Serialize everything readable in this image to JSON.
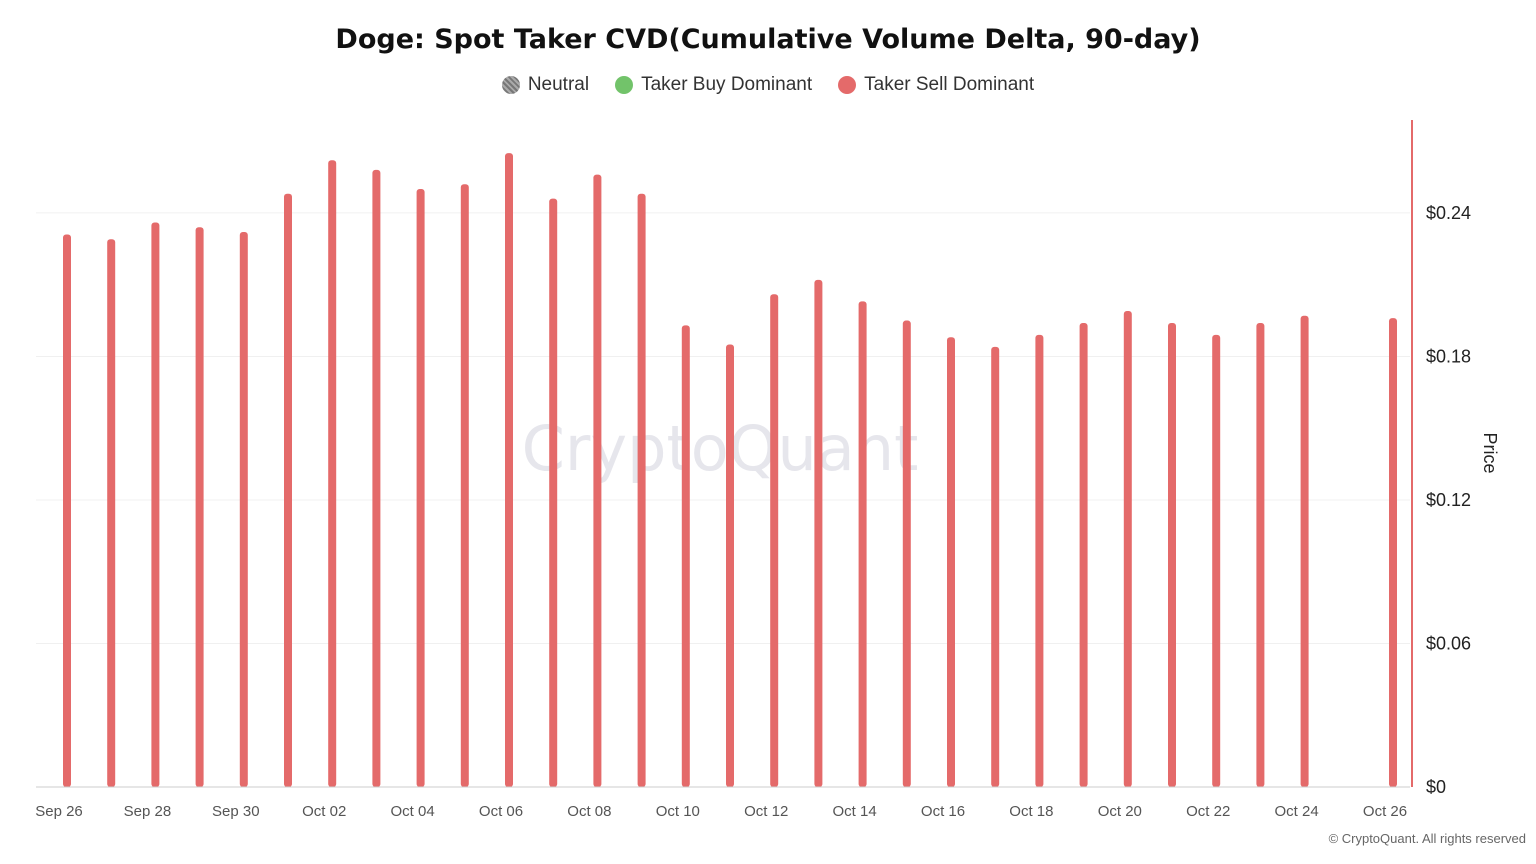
{
  "chart_data": {
    "type": "bar",
    "title": "Doge: Spot Taker CVD(Cumulative Volume Delta, 90-day)",
    "ylabel": "Price",
    "ylim": [
      0,
      0.28
    ],
    "yticks": [
      "$0",
      "$0.06",
      "$0.12",
      "$0.18",
      "$0.24"
    ],
    "ytick_values": [
      0,
      0.06,
      0.12,
      0.18,
      0.24
    ],
    "xticks": [
      "Sep 26",
      "Sep 28",
      "Sep 30",
      "Oct 02",
      "Oct 04",
      "Oct 06",
      "Oct 08",
      "Oct 10",
      "Oct 12",
      "Oct 14",
      "Oct 16",
      "Oct 18",
      "Oct 20",
      "Oct 22",
      "Oct 24",
      "Oct 26"
    ],
    "legend": [
      {
        "name": "Neutral",
        "color": "#888888"
      },
      {
        "name": "Taker Buy Dominant",
        "color": "#72c36a"
      },
      {
        "name": "Taker Sell Dominant",
        "color": "#e46a6a"
      }
    ],
    "legend_position": "top-center",
    "grid": true,
    "bar_color": "#e46a6a",
    "categories": [
      "Sep 26",
      "Sep 27",
      "Sep 28",
      "Sep 29",
      "Sep 30",
      "Oct 01",
      "Oct 02",
      "Oct 03",
      "Oct 04",
      "Oct 05",
      "Oct 06",
      "Oct 07",
      "Oct 08",
      "Oct 09",
      "Oct 10",
      "Oct 11",
      "Oct 12",
      "Oct 13",
      "Oct 14",
      "Oct 15",
      "Oct 16",
      "Oct 17",
      "Oct 18",
      "Oct 19",
      "Oct 20",
      "Oct 21",
      "Oct 22",
      "Oct 23",
      "Oct 24",
      "Oct 25",
      "Oct 26"
    ],
    "values": [
      0.231,
      0.229,
      0.236,
      0.234,
      0.232,
      0.248,
      0.262,
      0.258,
      0.25,
      0.252,
      0.265,
      0.246,
      0.256,
      0.248,
      0.193,
      0.185,
      0.206,
      0.212,
      0.203,
      0.195,
      0.188,
      0.184,
      0.189,
      0.194,
      0.199,
      0.194,
      0.189,
      0.194,
      0.197,
      null,
      0.196
    ],
    "series": [
      {
        "name": "Taker Sell Dominant",
        "values": [
          0.231,
          0.229,
          0.236,
          0.234,
          0.232,
          0.248,
          0.262,
          0.258,
          0.25,
          0.252,
          0.265,
          0.246,
          0.256,
          0.248,
          0.193,
          0.185,
          0.206,
          0.212,
          0.203,
          0.195,
          0.188,
          0.184,
          0.189,
          0.194,
          0.199,
          0.194,
          0.189,
          0.194,
          0.197,
          null,
          0.196
        ]
      }
    ]
  },
  "watermark": "CryptoQuant",
  "copyright": "© CryptoQuant. All rights reserved"
}
